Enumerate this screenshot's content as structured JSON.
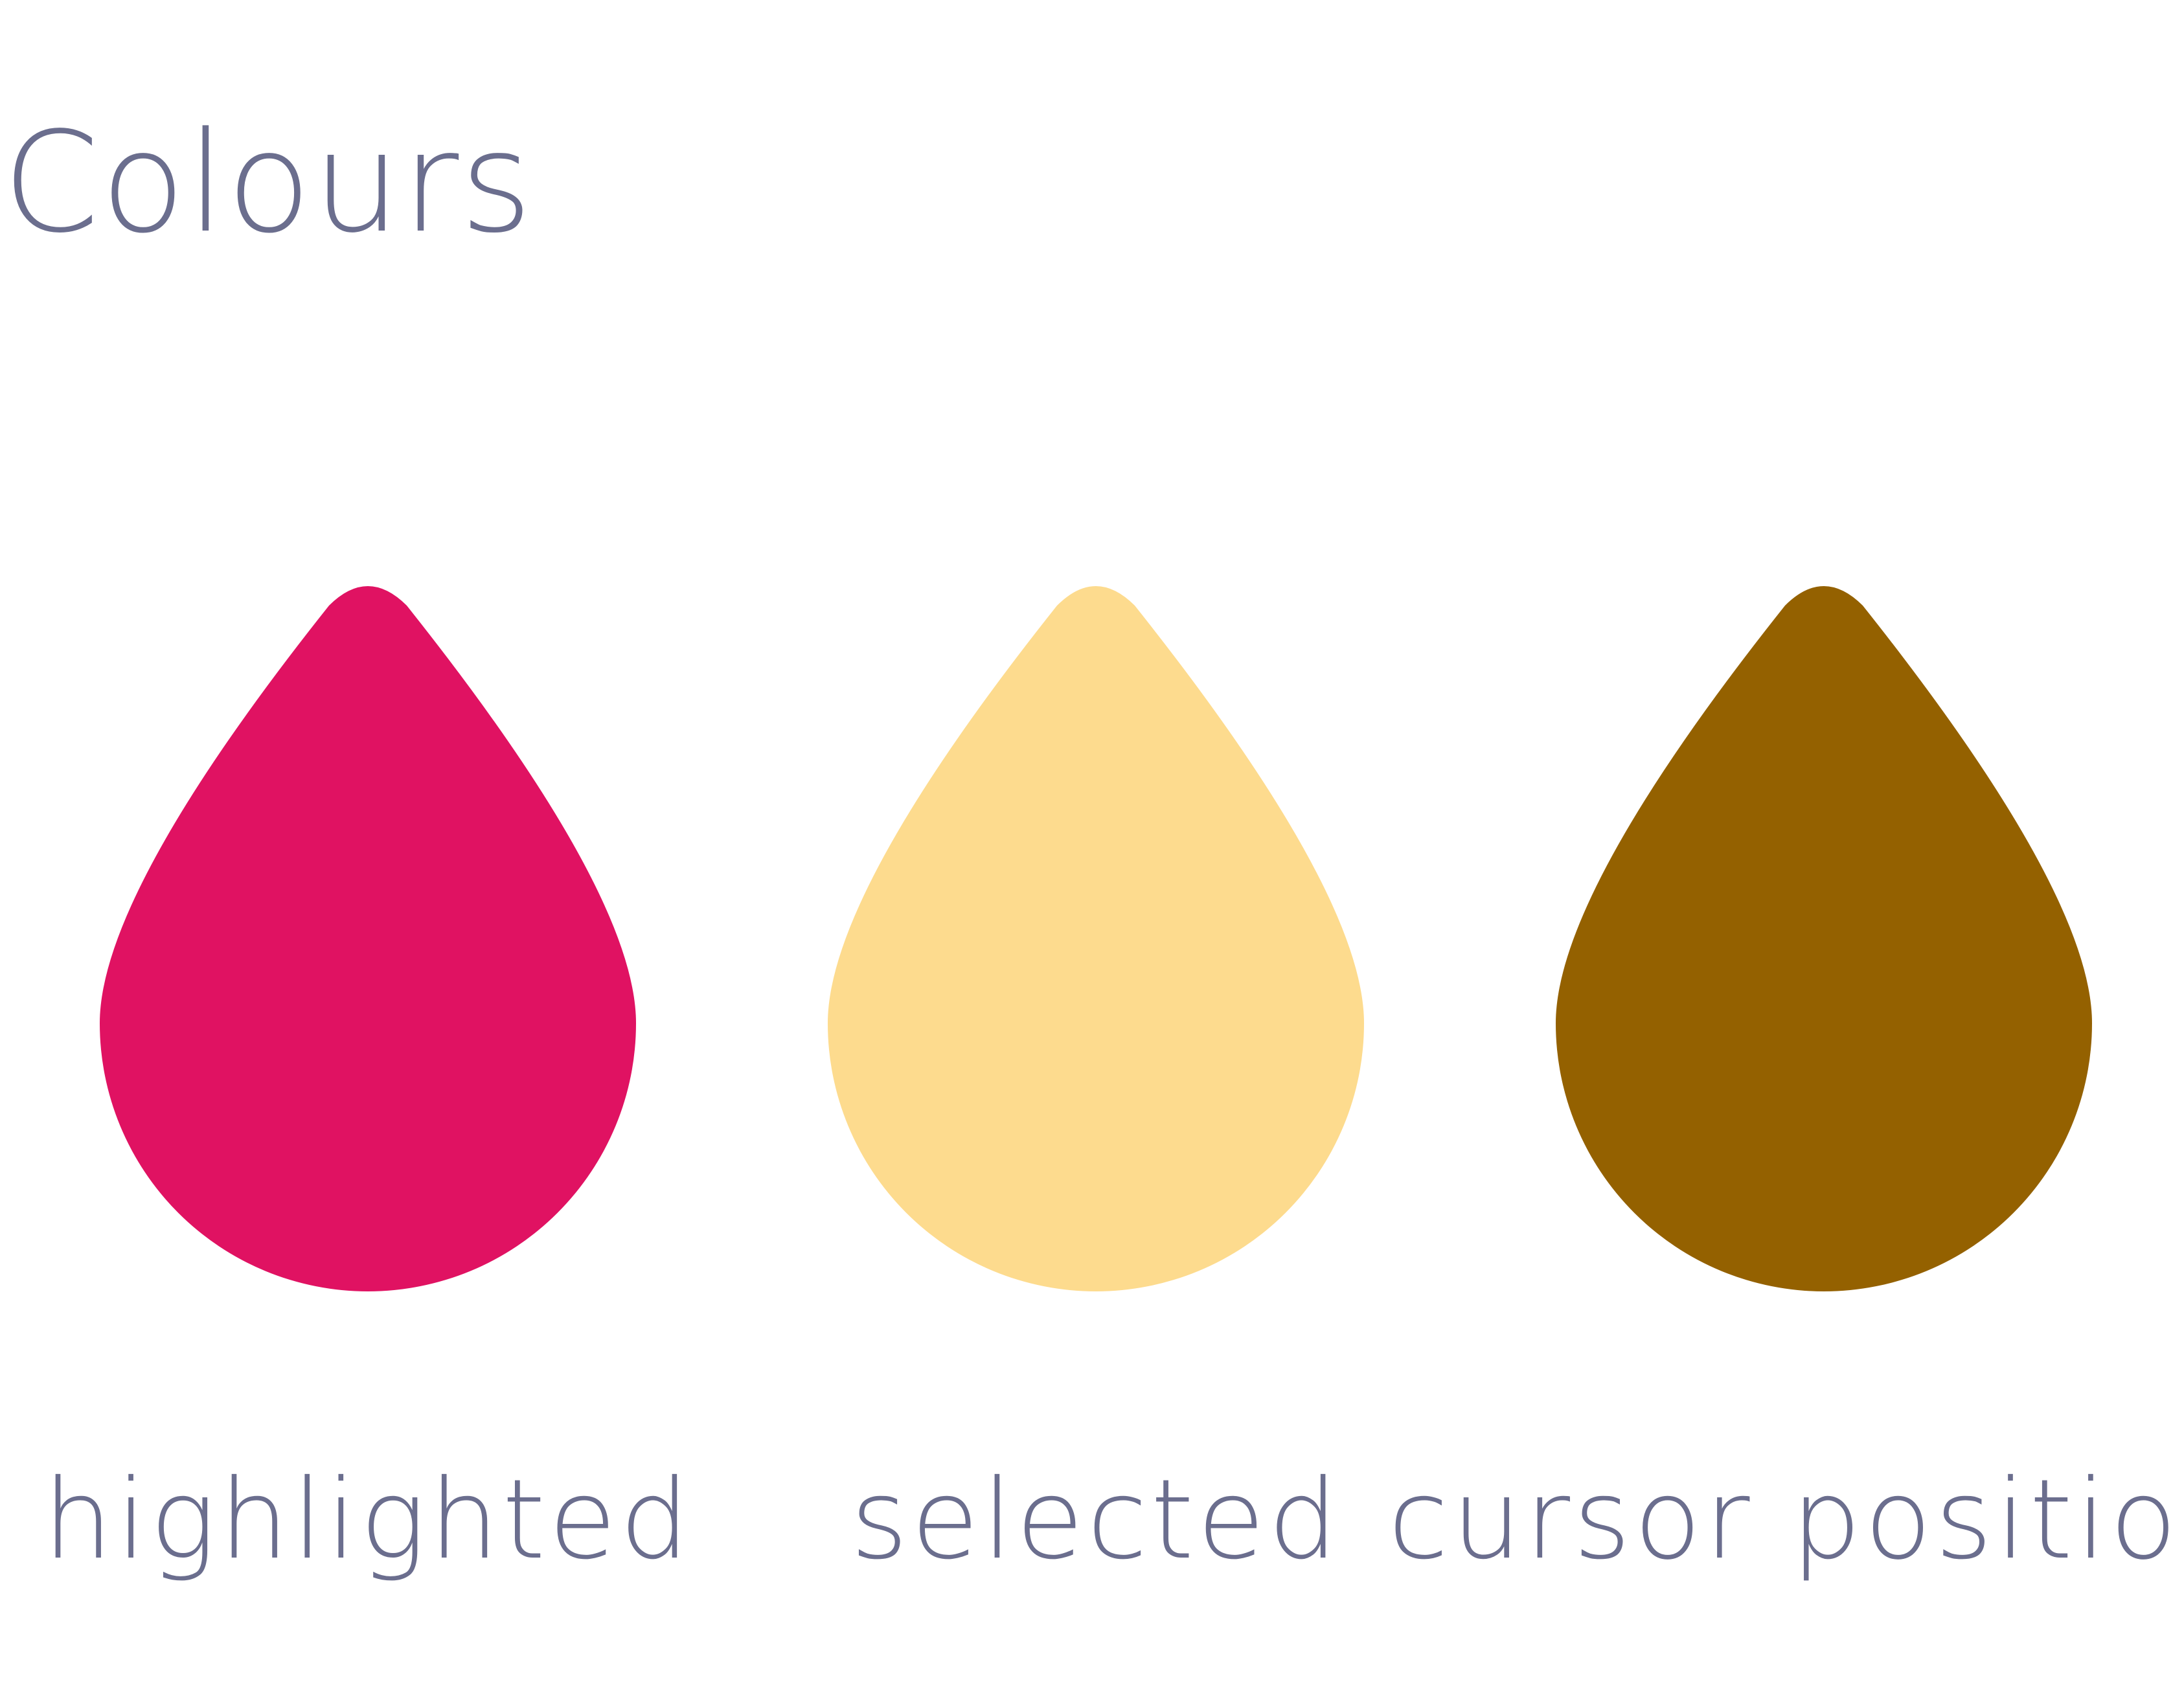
{
  "title": "Colours",
  "swatches": [
    {
      "label": "highlighted",
      "color": "#e01262",
      "icon": "droplet-icon"
    },
    {
      "label": "selected",
      "color": "#fddb8e",
      "icon": "droplet-icon"
    },
    {
      "label": "cursor position",
      "color": "#946100",
      "icon": "droplet-icon"
    }
  ]
}
